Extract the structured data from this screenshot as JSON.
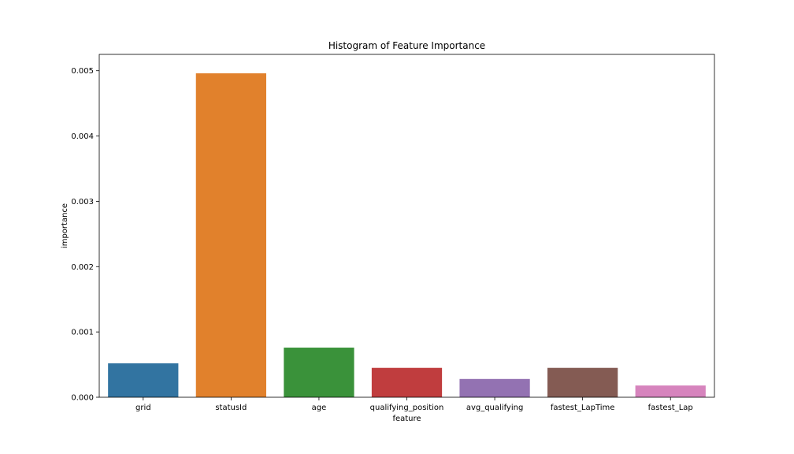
{
  "chart_data": {
    "type": "bar",
    "title": "Histogram of Feature Importance",
    "xlabel": "feature",
    "ylabel": "importance",
    "categories": [
      "grid",
      "statusId",
      "age",
      "qualifying_position",
      "avg_qualifying",
      "fastest_LapTime",
      "fastest_Lap"
    ],
    "values": [
      0.00052,
      0.00496,
      0.00076,
      0.00045,
      0.00028,
      0.00045,
      0.00018
    ],
    "colors": [
      "#3274a1",
      "#e1812c",
      "#3a923a",
      "#c03d3e",
      "#9372b2",
      "#845b53",
      "#d684bd"
    ],
    "ylim": [
      0,
      0.00525
    ],
    "yticks": [
      0.0,
      0.001,
      0.002,
      0.003,
      0.004,
      0.005
    ],
    "ytick_labels": [
      "0.000",
      "0.001",
      "0.002",
      "0.003",
      "0.004",
      "0.005"
    ],
    "grid": false,
    "legend": "none"
  }
}
